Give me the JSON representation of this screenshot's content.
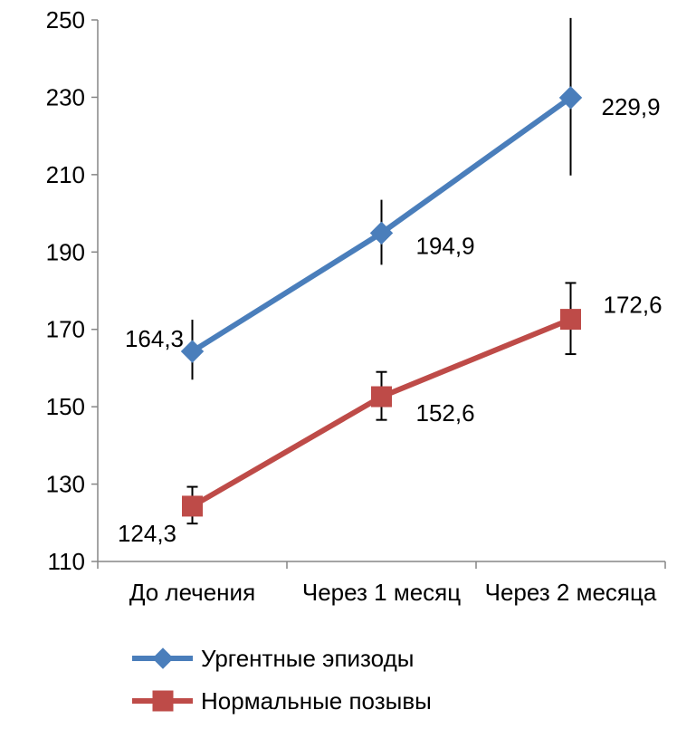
{
  "chart_data": {
    "type": "line",
    "title": "",
    "xlabel": "",
    "ylabel": "",
    "categories": [
      "До лечения",
      "Через 1 месяц",
      "Через 2 месяца"
    ],
    "ylim": [
      110,
      250
    ],
    "yticks": [
      110,
      130,
      150,
      170,
      190,
      210,
      230,
      250
    ],
    "grid": false,
    "legend_position": "bottom-left",
    "series": [
      {
        "name": "Ургентные эпизоды",
        "color": "#4a7ebb",
        "marker": "diamond",
        "values": [
          164.3,
          194.9,
          229.9
        ],
        "labels": [
          "164,3",
          "194,9",
          "229,9"
        ],
        "err_low": [
          157,
          186.7,
          209.8
        ],
        "err_high": [
          172.5,
          203.5,
          250.5
        ]
      },
      {
        "name": "Нормальные позывы",
        "color": "#be4b48",
        "marker": "square",
        "values": [
          124.3,
          152.6,
          172.6
        ],
        "labels": [
          "124,3",
          "152,6",
          "172,6"
        ],
        "err_low": [
          119.8,
          146.6,
          163.6
        ],
        "err_high": [
          129.3,
          159,
          182
        ]
      }
    ]
  }
}
